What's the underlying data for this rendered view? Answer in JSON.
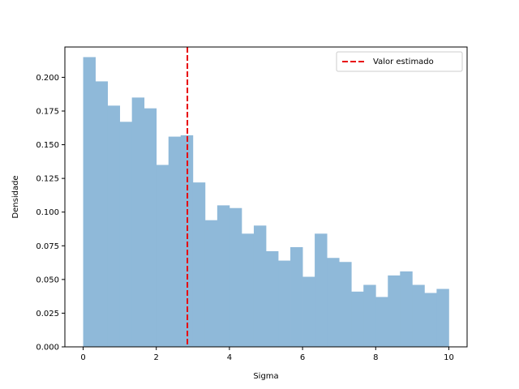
{
  "chart_data": {
    "type": "bar",
    "subtype": "histogram",
    "xlabel": "Sigma",
    "ylabel": "Densidade",
    "xlim": [
      -0.5,
      10.5
    ],
    "ylim": [
      0,
      0.2225
    ],
    "xticks": [
      0,
      2,
      4,
      6,
      8,
      10
    ],
    "yticks": [
      0.0,
      0.025,
      0.05,
      0.075,
      0.1,
      0.125,
      0.15,
      0.175,
      0.2
    ],
    "bin_start": 0,
    "bin_width": 0.3333,
    "values": [
      0.215,
      0.197,
      0.179,
      0.167,
      0.185,
      0.177,
      0.135,
      0.156,
      0.157,
      0.122,
      0.094,
      0.105,
      0.103,
      0.084,
      0.09,
      0.071,
      0.064,
      0.074,
      0.052,
      0.084,
      0.066,
      0.063,
      0.041,
      0.046,
      0.037,
      0.053,
      0.056,
      0.046,
      0.04,
      0.043
    ],
    "bar_color": "#8fb9d9",
    "vline": {
      "x": 2.85,
      "label": "Valor estimado",
      "color": "#e8080d",
      "style": "dashed"
    },
    "legend": {
      "position": "top-right",
      "entries": [
        "Valor estimado"
      ]
    },
    "grid": false
  }
}
